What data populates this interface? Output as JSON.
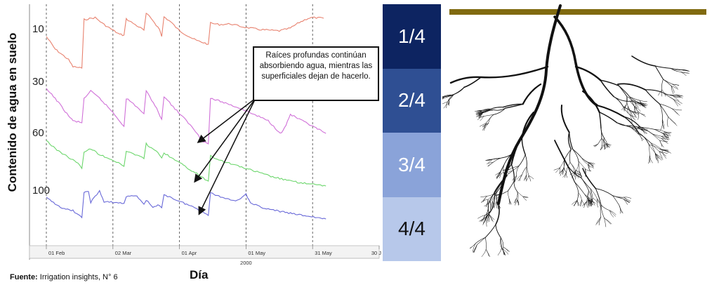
{
  "chart_data": {
    "type": "line",
    "ylabel": "Contenido de agua en suelo",
    "xlabel": "Día",
    "year_label": "2000",
    "x_ticks": [
      "01 Feb",
      "02 Mar",
      "01 Apr",
      "01 May",
      "31 May",
      "30 J"
    ],
    "series": [
      {
        "name": "10",
        "color": "#e8826f",
        "points": [
          [
            0,
            52
          ],
          [
            4,
            70
          ],
          [
            10,
            85
          ],
          [
            12,
            95
          ],
          [
            16,
            97
          ],
          [
            17,
            28
          ],
          [
            22,
            25
          ],
          [
            26,
            35
          ],
          [
            33,
            49
          ],
          [
            35,
            50
          ],
          [
            36,
            27
          ],
          [
            40,
            35
          ],
          [
            44,
            43
          ],
          [
            45,
            19
          ],
          [
            48,
            29
          ],
          [
            51,
            42
          ],
          [
            52,
            52
          ],
          [
            53,
            24
          ],
          [
            56,
            31
          ],
          [
            60,
            44
          ],
          [
            66,
            55
          ],
          [
            68,
            58
          ],
          [
            70,
            60
          ],
          [
            73,
            63
          ],
          [
            74,
            33
          ],
          [
            78,
            35
          ],
          [
            83,
            34
          ],
          [
            88,
            38
          ],
          [
            92,
            40
          ],
          [
            96,
            42
          ],
          [
            100,
            43
          ],
          [
            105,
            44
          ],
          [
            110,
            40
          ],
          [
            114,
            32
          ],
          [
            118,
            26
          ],
          [
            120,
            25
          ],
          [
            125,
            26
          ]
        ]
      },
      {
        "name": "30",
        "color": "#d070d8",
        "points": [
          [
            0,
            127
          ],
          [
            4,
            140
          ],
          [
            10,
            165
          ],
          [
            12,
            172
          ],
          [
            16,
            175
          ],
          [
            17,
            140
          ],
          [
            20,
            130
          ],
          [
            24,
            140
          ],
          [
            30,
            160
          ],
          [
            35,
            180
          ],
          [
            36,
            140
          ],
          [
            40,
            150
          ],
          [
            44,
            162
          ],
          [
            45,
            130
          ],
          [
            49,
            150
          ],
          [
            52,
            170
          ],
          [
            53,
            137
          ],
          [
            58,
            155
          ],
          [
            64,
            175
          ],
          [
            68,
            190
          ],
          [
            70,
            200
          ],
          [
            73,
            205
          ],
          [
            74,
            140
          ],
          [
            80,
            146
          ],
          [
            88,
            155
          ],
          [
            95,
            165
          ],
          [
            100,
            172
          ],
          [
            104,
            185
          ],
          [
            106,
            190
          ],
          [
            108,
            178
          ],
          [
            110,
            163
          ],
          [
            114,
            170
          ],
          [
            120,
            180
          ],
          [
            126,
            190
          ]
        ]
      },
      {
        "name": "60",
        "color": "#6cd66c",
        "points": [
          [
            0,
            200
          ],
          [
            4,
            212
          ],
          [
            12,
            228
          ],
          [
            15,
            235
          ],
          [
            16,
            240
          ],
          [
            17,
            216
          ],
          [
            20,
            212
          ],
          [
            24,
            220
          ],
          [
            30,
            228
          ],
          [
            35,
            237
          ],
          [
            36,
            215
          ],
          [
            40,
            220
          ],
          [
            44,
            226
          ],
          [
            45,
            205
          ],
          [
            48,
            212
          ],
          [
            51,
            220
          ],
          [
            52,
            226
          ],
          [
            53,
            218
          ],
          [
            58,
            228
          ],
          [
            64,
            240
          ],
          [
            70,
            252
          ],
          [
            73,
            258
          ],
          [
            74,
            222
          ],
          [
            80,
            230
          ],
          [
            88,
            238
          ],
          [
            95,
            245
          ],
          [
            102,
            252
          ],
          [
            110,
            258
          ],
          [
            118,
            262
          ],
          [
            126,
            265
          ]
        ]
      },
      {
        "name": "100",
        "color": "#6868d8",
        "points": [
          [
            0,
            282
          ],
          [
            4,
            290
          ],
          [
            8,
            298
          ],
          [
            12,
            300
          ],
          [
            16,
            310
          ],
          [
            17,
            275
          ],
          [
            19,
            272
          ],
          [
            20,
            288
          ],
          [
            22,
            280
          ],
          [
            24,
            272
          ],
          [
            26,
            288
          ],
          [
            30,
            288
          ],
          [
            35,
            290
          ],
          [
            36,
            280
          ],
          [
            40,
            278
          ],
          [
            44,
            290
          ],
          [
            45,
            285
          ],
          [
            48,
            296
          ],
          [
            51,
            292
          ],
          [
            52,
            296
          ],
          [
            53,
            277
          ],
          [
            58,
            284
          ],
          [
            64,
            292
          ],
          [
            70,
            300
          ],
          [
            72,
            304
          ],
          [
            73,
            307
          ],
          [
            74,
            275
          ],
          [
            80,
            282
          ],
          [
            86,
            286
          ],
          [
            90,
            276
          ],
          [
            92,
            290
          ],
          [
            100,
            298
          ],
          [
            110,
            304
          ],
          [
            118,
            308
          ],
          [
            126,
            312
          ]
        ]
      }
    ]
  },
  "annotation": {
    "text": "Raíces profundas continúan absorbiendo agua, mientras las superficiales dejan de hacerlo."
  },
  "source": {
    "label": "Fuente:",
    "text": "Irrigation insights, N° 6"
  },
  "depth_bands": [
    {
      "label": "1/4",
      "color": "#0d2461"
    },
    {
      "label": "2/4",
      "color": "#2f4f93"
    },
    {
      "label": "3/4",
      "color": "#8aa3d9"
    },
    {
      "label": "4/4",
      "color": "#b7c8ea"
    }
  ],
  "colors": {
    "ground_line": "#806a10",
    "roots": "#111111"
  }
}
